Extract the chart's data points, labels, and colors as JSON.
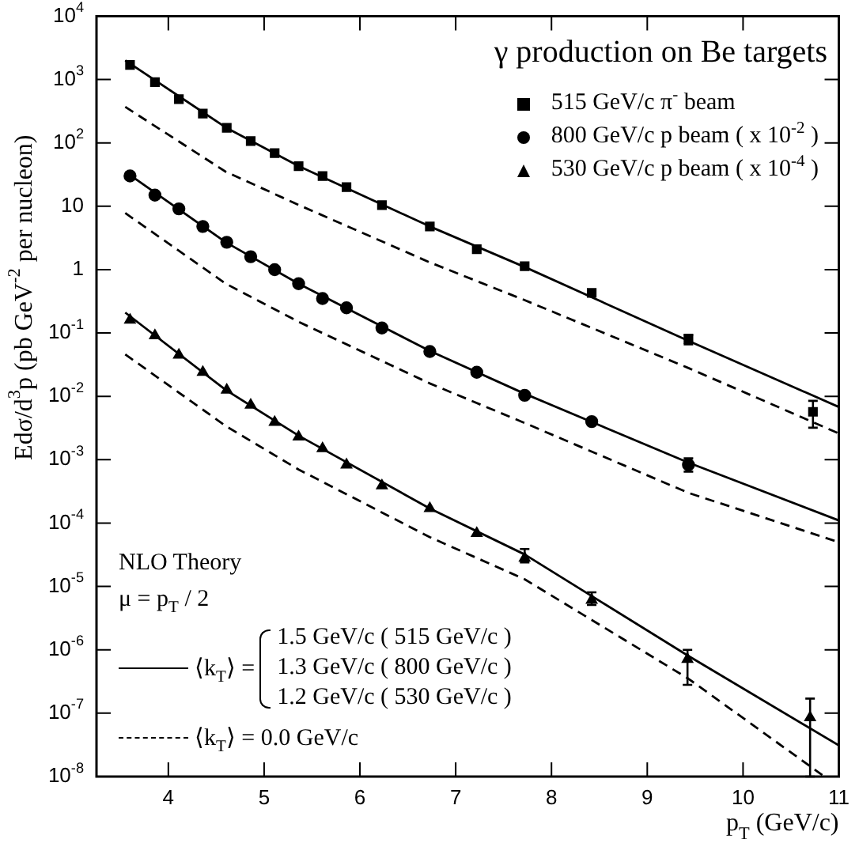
{
  "chart_data": {
    "type": "scatter",
    "xlabel": "p$_{T}$ (GeV/c)",
    "ylabel": "Edσ/d$^{3}$p (pb GeV$^{-2}$ per nucleon)",
    "legend_title": "γ production on Be targets",
    "legend": "top right",
    "log": "y",
    "grid": false,
    "xlim": [
      3.25,
      11
    ],
    "xticks": [
      4,
      5,
      6,
      7,
      8,
      9,
      10,
      11
    ],
    "ylim": [
      1e-08,
      10000
    ],
    "yticks": [
      {
        "value": 10000,
        "label": "10$^{4}$"
      },
      {
        "value": 1000,
        "label": "10$^{3}$"
      },
      {
        "value": 100,
        "label": "10$^{2}$"
      },
      10,
      1,
      {
        "value": 0.1,
        "label": "10$^{-1}$"
      },
      {
        "value": 0.01,
        "label": "10$^{-2}$"
      },
      {
        "value": 0.001,
        "label": "10$^{-3}$"
      },
      {
        "value": 0.0001,
        "label": "10$^{-4}$"
      },
      {
        "value": 1e-05,
        "label": "10$^{-5}$"
      },
      {
        "value": 1e-06,
        "label": "10$^{-6}$"
      },
      {
        "value": 1e-07,
        "label": "10$^{-7}$"
      },
      {
        "value": 1e-08,
        "label": "10$^{-8}$"
      }
    ],
    "annotations": [
      "NLO Theory",
      "μ = p$_{T}$ / 2",
      "⟨k$_{T}$⟩ =",
      "1.5 GeV/c ( 515 GeV/c )",
      "1.3 GeV/c ( 800 GeV/c )",
      "1.2 GeV/c ( 530 GeV/c )",
      "⟨k$_{T}$⟩ = 0.0 GeV/c"
    ],
    "series": [
      {
        "type": "line",
        "color": "#000000",
        "line_style": "solid",
        "marker": "none",
        "x": [
          3.55,
          4.6,
          5.36,
          6.73,
          7.72,
          9.43,
          11
        ],
        "values": [
          2000,
          175,
          43,
          4.8,
          1.1,
          0.075,
          0.0068
        ]
      },
      {
        "type": "line",
        "color": "#000000",
        "line_style": "dashed",
        "marker": "none",
        "x": [
          3.55,
          4.6,
          5.36,
          6.73,
          7.72,
          9.43,
          11
        ],
        "values": [
          370,
          35,
          10.5,
          1.3,
          0.33,
          0.028,
          0.0026
        ]
      },
      {
        "type": "line",
        "color": "#000000",
        "line_style": "solid",
        "marker": "none",
        "x": [
          3.55,
          4.6,
          5.36,
          6.73,
          7.72,
          9.43,
          11
        ],
        "values": [
          35,
          2.7,
          0.6,
          0.052,
          0.011,
          0.0009,
          0.00011
        ]
      },
      {
        "type": "line",
        "color": "#000000",
        "line_style": "dashed",
        "marker": "none",
        "x": [
          3.55,
          4.6,
          5.36,
          6.73,
          7.72,
          9.43,
          11
        ],
        "values": [
          7.8,
          0.6,
          0.15,
          0.016,
          0.0038,
          0.0003,
          5e-05
        ]
      },
      {
        "type": "line",
        "color": "#000000",
        "line_style": "solid",
        "marker": "none",
        "x": [
          3.55,
          4.6,
          5.36,
          6.73,
          7.72,
          9.43,
          11
        ],
        "values": [
          0.21,
          0.0126,
          0.0024,
          0.00017,
          3.2e-05,
          8e-07,
          3.1e-08
        ]
      },
      {
        "type": "line",
        "color": "#000000",
        "line_style": "dashed",
        "marker": "none",
        "x": [
          3.55,
          4.6,
          5.36,
          6.73,
          7.72,
          9.43,
          10.85
        ],
        "values": [
          0.046,
          0.0034,
          0.0007,
          6e-05,
          1.3e-05,
          3.5e-07,
          1e-08
        ]
      },
      {
        "name": "515 GeV/c π$^{-}$ beam",
        "type": "scatter",
        "color": "#000000",
        "marker": "square",
        "x": [
          3.6,
          3.86,
          4.11,
          4.36,
          4.61,
          4.86,
          5.11,
          5.36,
          5.61,
          5.86,
          6.23,
          6.73,
          7.22,
          7.72,
          8.42,
          9.43,
          10.73
        ],
        "values": [
          1700,
          910,
          490,
          290,
          173,
          107,
          69,
          43,
          30,
          20,
          10.4,
          4.8,
          2.1,
          1.13,
          0.43,
          0.08,
          0.0057
        ],
        "errors": [
          null,
          null,
          null,
          null,
          null,
          null,
          null,
          null,
          null,
          null,
          null,
          null,
          null,
          null,
          null,
          [
            0.066,
            0.094
          ],
          [
            0.0032,
            0.0085
          ]
        ]
      },
      {
        "name": "800 GeV/c p beam ( x 10$^{-2}$ )",
        "type": "scatter",
        "color": "#000000",
        "marker": "circle",
        "x": [
          3.6,
          3.86,
          4.11,
          4.36,
          4.61,
          4.86,
          5.11,
          5.36,
          5.61,
          5.86,
          6.23,
          6.73,
          7.22,
          7.72,
          8.42,
          9.43
        ],
        "values": [
          30,
          15,
          9.1,
          4.8,
          2.7,
          1.6,
          1.0,
          0.6,
          0.35,
          0.25,
          0.12,
          0.051,
          0.024,
          0.0104,
          0.004,
          0.00083
        ],
        "errors": [
          null,
          null,
          null,
          null,
          null,
          null,
          null,
          null,
          null,
          null,
          null,
          null,
          null,
          null,
          null,
          [
            0.00065,
            0.00105
          ]
        ]
      },
      {
        "name": "530 GeV/c p beam ( x 10$^{-4}$ )",
        "type": "scatter",
        "color": "#000000",
        "marker": "triangle",
        "x": [
          3.6,
          3.86,
          4.11,
          4.36,
          4.61,
          4.86,
          5.11,
          5.36,
          5.61,
          5.86,
          6.23,
          6.73,
          7.22,
          7.72,
          8.42,
          9.42,
          10.7
        ],
        "values": [
          0.16,
          0.091,
          0.045,
          0.024,
          0.0126,
          0.0073,
          0.0039,
          0.0023,
          0.0015,
          0.00083,
          0.00039,
          0.00017,
          6.9e-05,
          2.8e-05,
          6.1e-06,
          7.1e-07,
          8.5e-08
        ],
        "errors": [
          null,
          null,
          null,
          null,
          null,
          null,
          null,
          null,
          null,
          null,
          null,
          null,
          null,
          [
            2.4e-05,
            3.9e-05
          ],
          [
            5.1e-06,
            8.1e-06
          ],
          [
            2.8e-07,
            1e-06
          ],
          [
            1e-08,
            1.7e-07
          ]
        ]
      }
    ]
  }
}
